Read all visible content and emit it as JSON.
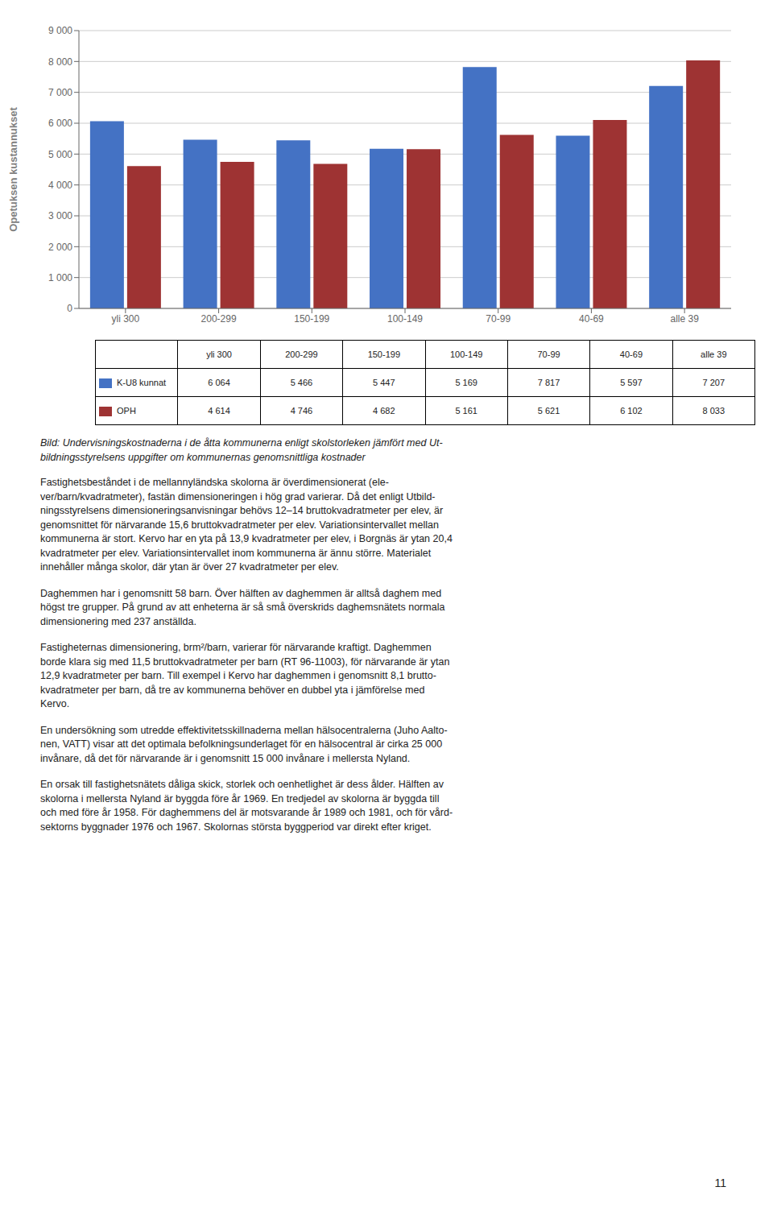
{
  "chart_data": {
    "type": "bar",
    "categories": [
      "yli 300",
      "200-299",
      "150-199",
      "100-149",
      "70-99",
      "40-69",
      "alle 39"
    ],
    "series": [
      {
        "name": "K-U8 kunnat",
        "color": "#4472C4",
        "values": [
          6064,
          5466,
          5447,
          5169,
          7817,
          5597,
          7207
        ],
        "value_labels": [
          "6 064",
          "5 466",
          "5 447",
          "5 169",
          "7 817",
          "5 597",
          "7 207"
        ]
      },
      {
        "name": "OPH",
        "color": "#9E3333",
        "values": [
          4614,
          4746,
          4682,
          5161,
          5621,
          6102,
          8033
        ],
        "value_labels": [
          "4 614",
          "4 746",
          "4 682",
          "5 161",
          "5 621",
          "6 102",
          "8 033"
        ]
      }
    ],
    "ylabel": "Opetuksen kustannukset",
    "ylim": [
      0,
      9000
    ],
    "yticks": [
      0,
      {
        "value": 1000,
        "label": "1 000"
      },
      {
        "value": 2000,
        "label": "2 000"
      },
      {
        "value": 3000,
        "label": "3 000"
      },
      {
        "value": 4000,
        "label": "4 000"
      },
      {
        "value": 5000,
        "label": "5 000"
      },
      {
        "value": 6000,
        "label": "6 000"
      },
      {
        "value": 7000,
        "label": "7 000"
      },
      {
        "value": 8000,
        "label": "8 000"
      },
      {
        "value": 9000,
        "label": "9 000"
      }
    ],
    "grid": true,
    "caption": [
      "Bild: Undervisningskostnaderna i de åtta kommunerna enligt skolstorleken jämfört med Ut-",
      "bildningsstyrelsens uppgifter om kommunernas genomsnittliga kostnader"
    ],
    "annotations": [
      [
        "Fastighetsbeståndet i de mellannyländska skolorna är överdimensionerat (ele-",
        "ver/barn/kvadratmeter), fastän dimensioneringen i hög grad varierar. Då det enligt Utbild-",
        "ningsstyrelsens dimensioneringsanvisningar behövs 12–14 bruttokvadratmeter per elev, är",
        "genomsnittet för närvarande 15,6 bruttokvadratmeter per elev. Variationsintervallet mellan",
        "kommunerna är stort. Kervo har en yta på 13,9 kvadratmeter per elev, i Borgnäs är ytan 20,4",
        "kvadratmeter per elev. Variationsintervallet inom kommunerna är ännu större. Materialet",
        "innehåller många skolor, där ytan är över 27 kvadratmeter per elev."
      ],
      [
        "Daghemmen har i genomsnitt 58 barn. Över hälften av daghemmen är alltså daghem med",
        "högst tre grupper. På grund av att enheterna är så små överskrids daghemsnätets normala",
        "dimensionering med 237 anställda."
      ],
      [
        "Fastigheternas dimensionering, brm²/barn, varierar för närvarande kraftigt. Daghemmen",
        "borde klara sig med 11,5 bruttokvadratmeter per barn (RT 96-11003), för närvarande är ytan",
        "12,9 kvadratmeter per barn. Till exempel i Kervo har daghemmen i genomsnitt 8,1 brutto-",
        "kvadratmeter per barn, då tre av kommunerna behöver en dubbel yta i jämförelse med",
        "Kervo."
      ],
      [
        "En undersökning som utredde effektivitetsskillnaderna mellan hälsocentralerna (Juho Aalto-",
        "nen, VATT) visar att det optimala befolkningsunderlaget för en hälsocentral är cirka 25 000",
        "invånare, då det för närvarande är i genomsnitt 15 000 invånare i mellersta Nyland."
      ],
      [
        "En orsak till fastighetsnätets dåliga skick, storlek och oenhetlighet är dess ålder. Hälften av",
        "skolorna i mellersta Nyland är byggda före år 1969. En tredjedel av skolorna är byggda till",
        "och med före år 1958. För daghemmens del är motsvarande år 1989 och 1981, och för vård-",
        "sektorns byggnader 1976 och 1967. Skolornas största byggperiod var direkt efter kriget."
      ]
    ],
    "page_number": "11"
  }
}
